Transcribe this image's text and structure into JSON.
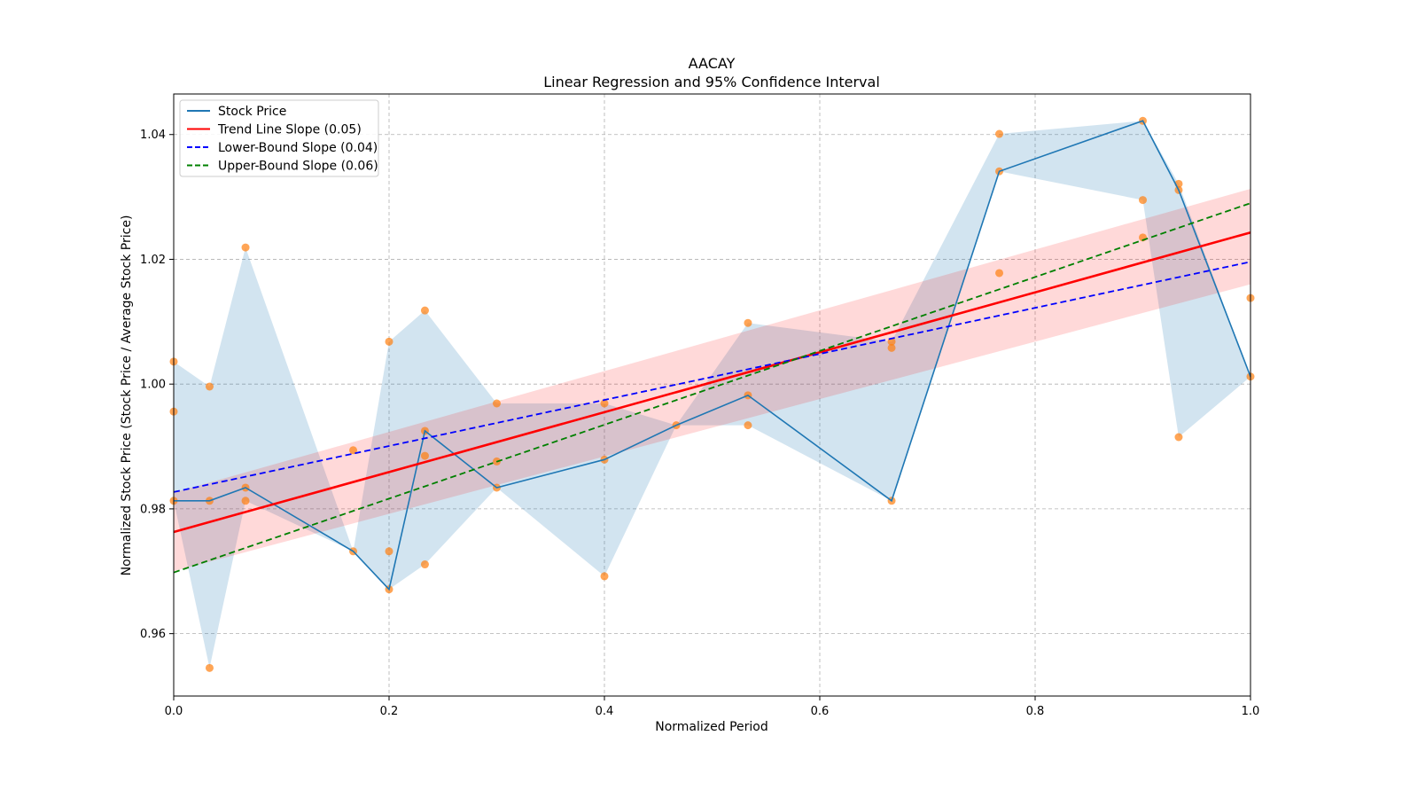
{
  "chart_data": {
    "type": "line",
    "title": "AACAY",
    "subtitle": "Linear Regression and 95% Confidence Interval",
    "xlabel": "Normalized Period",
    "ylabel": "Normalized Stock Price (Stock Price / Average Stock Price)",
    "xlim": [
      0,
      1
    ],
    "ylim": [
      0.95,
      1.0465
    ],
    "x_ticks": [
      0.0,
      0.2,
      0.4,
      0.6,
      0.8,
      1.0
    ],
    "x_tick_labels": [
      "0.0",
      "0.2",
      "0.4",
      "0.6",
      "0.8",
      "1.0"
    ],
    "y_ticks": [
      0.96,
      0.98,
      1.0,
      1.02,
      1.04
    ],
    "y_tick_labels": [
      "0.96",
      "0.98",
      "1.00",
      "1.02",
      "1.04"
    ],
    "grid": true,
    "legend_position": "top-left",
    "legend": [
      {
        "label": "Stock Price",
        "color": "#1f77b4",
        "style": "solid"
      },
      {
        "label": "Trend Line Slope (0.05)",
        "color": "#ff0000",
        "style": "solid"
      },
      {
        "label": "Lower-Bound Slope (0.04)",
        "color": "#0000ff",
        "style": "dashed"
      },
      {
        "label": "Upper-Bound Slope (0.06)",
        "color": "#008000",
        "style": "dashed"
      }
    ],
    "stock_price": {
      "x": [
        0.0,
        0.0333,
        0.0667,
        0.1667,
        0.2,
        0.2333,
        0.3,
        0.4,
        0.4667,
        0.5333,
        0.6667,
        0.7667,
        0.9,
        0.9333,
        1.0
      ],
      "y": [
        0.9813,
        0.9813,
        0.9834,
        0.9732,
        0.9671,
        0.9925,
        0.9834,
        0.9879,
        0.9934,
        0.9982,
        0.9813,
        1.0341,
        1.0422,
        1.0311,
        1.0012
      ]
    },
    "stock_band": {
      "x": [
        0.0,
        0.0333,
        0.0667,
        0.1667,
        0.2,
        0.2333,
        0.3,
        0.4,
        0.4667,
        0.5333,
        0.6667,
        0.7667,
        0.9,
        0.9333,
        1.0
      ],
      "lower": [
        0.9813,
        0.9545,
        0.9813,
        0.9732,
        0.9671,
        0.9711,
        0.9834,
        0.9692,
        0.9934,
        0.9934,
        0.9813,
        1.0341,
        1.0295,
        0.9915,
        1.0012
      ],
      "upper": [
        1.0036,
        0.9996,
        1.0219,
        0.9732,
        1.0068,
        1.0118,
        0.9969,
        0.9969,
        0.9934,
        1.0098,
        1.0068,
        1.0401,
        1.0422,
        1.0321,
        1.0012
      ]
    },
    "scatter": {
      "color": "#ff7f0e",
      "x": [
        0.0,
        0.0,
        0.0,
        0.0333,
        0.0333,
        0.0333,
        0.0667,
        0.0667,
        0.0667,
        0.1667,
        0.1667,
        0.2,
        0.2,
        0.2,
        0.2333,
        0.2333,
        0.2333,
        0.2333,
        0.3,
        0.3,
        0.3,
        0.4,
        0.4,
        0.4,
        0.4667,
        0.5333,
        0.5333,
        0.5333,
        0.6667,
        0.6667,
        0.6667,
        0.7667,
        0.7667,
        0.7667,
        0.9,
        0.9,
        0.9,
        0.9333,
        0.9333,
        0.9333,
        1.0,
        1.0
      ],
      "y": [
        1.0036,
        0.9956,
        0.9813,
        0.9996,
        0.9813,
        0.9545,
        1.0219,
        0.9834,
        0.9813,
        0.9894,
        0.9732,
        1.0068,
        0.9732,
        0.9671,
        1.0118,
        0.9925,
        0.9885,
        0.9711,
        0.9969,
        0.9876,
        0.9834,
        0.9969,
        0.9879,
        0.9692,
        0.9934,
        1.0098,
        0.9982,
        0.9934,
        1.0068,
        1.0058,
        0.9813,
        1.0401,
        1.0341,
        1.0178,
        1.0422,
        1.0295,
        1.0235,
        1.0321,
        1.0311,
        0.9915,
        1.0138,
        1.0012
      ]
    },
    "trend_line": {
      "color": "#ff0000",
      "x": [
        0,
        1
      ],
      "y": [
        0.9763,
        1.0243
      ]
    },
    "trend_ci": {
      "color": "#ffc0c0",
      "x": [
        0,
        1
      ],
      "lower": [
        0.97,
        1.016
      ],
      "upper": [
        0.9826,
        1.0313
      ]
    },
    "lower_bound_line": {
      "color": "#0000ff",
      "x": [
        0,
        1
      ],
      "y": [
        0.9827,
        1.0196
      ]
    },
    "upper_bound_line": {
      "color": "#008000",
      "x": [
        0,
        1
      ],
      "y": [
        0.9698,
        1.029
      ]
    }
  }
}
